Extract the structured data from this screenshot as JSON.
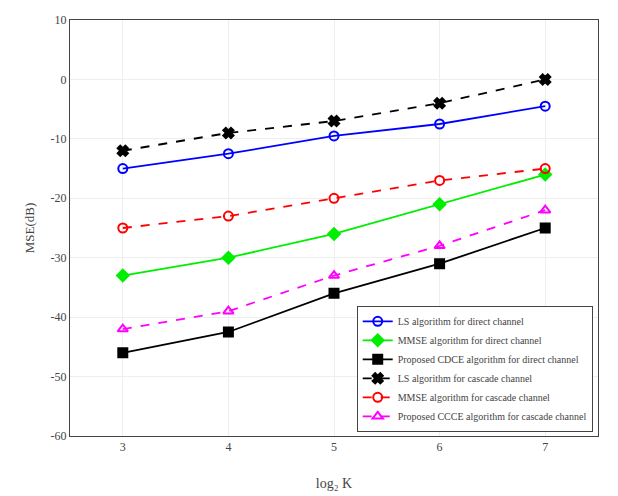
{
  "chart_data": {
    "type": "line",
    "xlabel": "log₂ K",
    "ylabel": "MSE(dB)",
    "x": [
      3,
      4,
      5,
      6,
      7
    ],
    "xlim": [
      2.5,
      7.5
    ],
    "xticks": [
      3,
      4,
      5,
      6,
      7
    ],
    "ylim": [
      -60,
      10
    ],
    "yticks": [
      -60,
      -50,
      -40,
      -30,
      -20,
      -10,
      0,
      10
    ],
    "grid": true,
    "legend": "lower right",
    "series": [
      {
        "name": "LS algorithm for direct channel",
        "color": "#0000FF",
        "marker": "circle-open",
        "line_style": "solid",
        "values": [
          -15,
          -12.5,
          -9.5,
          -7.5,
          -4.5
        ]
      },
      {
        "name": "MMSE algorithm for direct channel",
        "color": "#00EE00",
        "marker": "diamond",
        "line_style": "solid",
        "values": [
          -33,
          -30,
          -26,
          -21,
          -16
        ]
      },
      {
        "name": "Proposed CDCE algorithm for direct channel",
        "color": "#000000",
        "marker": "square",
        "line_style": "solid",
        "values": [
          -46,
          -42.5,
          -36,
          -31,
          -25
        ]
      },
      {
        "name": "LS algorithm for cascade channel",
        "color": "#000000",
        "marker": "x",
        "line_style": "dashed",
        "values": [
          -12,
          -9,
          -7,
          -4,
          0
        ]
      },
      {
        "name": "MMSE algorithm for cascade channel",
        "color": "#FF0000",
        "marker": "circle-open",
        "line_style": "dashed",
        "values": [
          -25,
          -23,
          -20,
          -17,
          -15
        ]
      },
      {
        "name": "Proposed CCCE algorithm for cascade channel",
        "color": "#FF00FF",
        "marker": "triangle-up-open",
        "line_style": "dashed",
        "values": [
          -42,
          -39,
          -33,
          -28,
          -22
        ]
      }
    ]
  }
}
